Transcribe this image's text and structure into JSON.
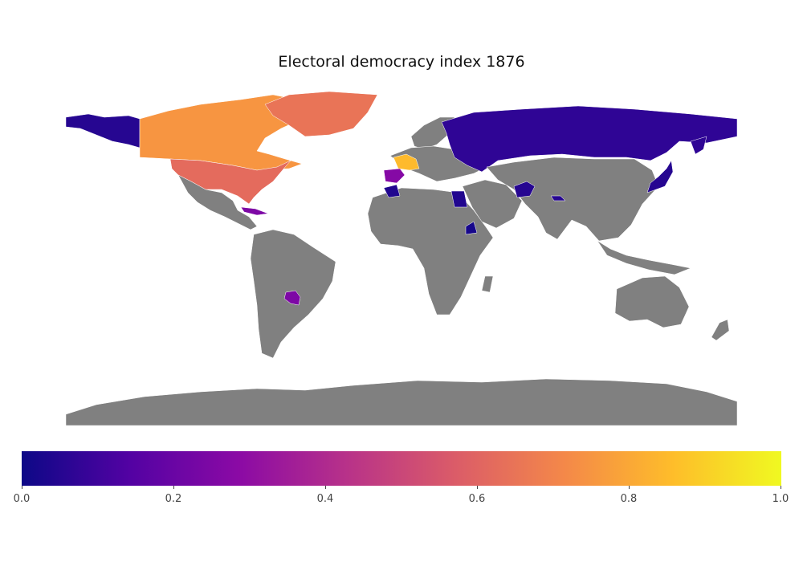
{
  "title": "Electoral democracy index 1876",
  "colorbar": {
    "colormap": "plasma",
    "min": 0.0,
    "max": 1.0,
    "ticks": [
      "0.0",
      "0.2",
      "0.4",
      "0.6",
      "0.8",
      "1.0"
    ],
    "stops": [
      "#0d0887",
      "#5302a3",
      "#8b0aa5",
      "#b83289",
      "#db5c68",
      "#f48849",
      "#febd2a",
      "#f0f921"
    ]
  },
  "colors": {
    "no_data": "#808080",
    "background": "#ffffff"
  },
  "chart_data": {
    "type": "choropleth",
    "title": "Electoral democracy index 1876",
    "range": [
      0,
      1
    ],
    "regions": [
      {
        "name": "Alaska",
        "value": 0.05
      },
      {
        "name": "Russia",
        "value": 0.07
      },
      {
        "name": "Canada",
        "value": 0.75
      },
      {
        "name": "Greenland",
        "value": 0.65
      },
      {
        "name": "United States",
        "value": 0.62
      },
      {
        "name": "France",
        "value": 0.85
      },
      {
        "name": "Spain",
        "value": 0.27
      },
      {
        "name": "Morocco",
        "value": 0.04
      },
      {
        "name": "Egypt",
        "value": 0.04
      },
      {
        "name": "Ethiopia",
        "value": 0.02
      },
      {
        "name": "Afghanistan",
        "value": 0.05
      },
      {
        "name": "Nepal",
        "value": 0.05
      },
      {
        "name": "Japan",
        "value": 0.05
      },
      {
        "name": "Cuba",
        "value": 0.25
      },
      {
        "name": "Paraguay",
        "value": 0.25
      },
      {
        "name": "Other regions",
        "value": null
      }
    ]
  }
}
